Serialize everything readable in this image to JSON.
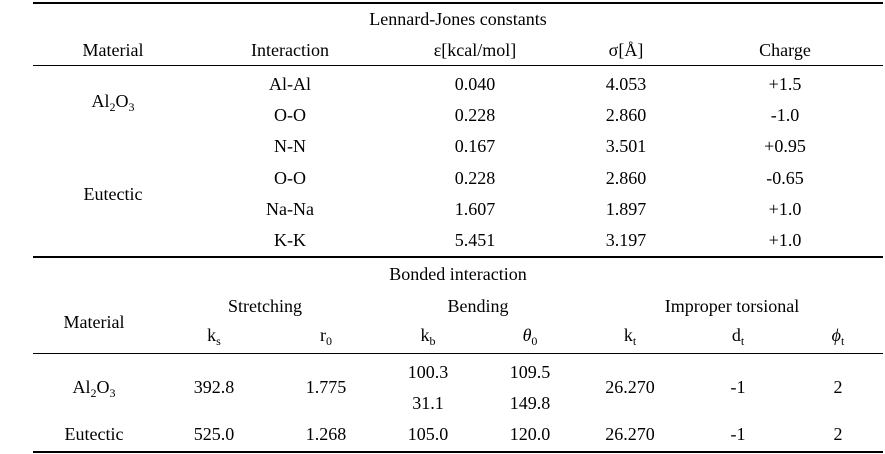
{
  "lj": {
    "title": "Lennard-Jones constants",
    "headers": {
      "material": "Material",
      "interaction": "Interaction",
      "epsilon": "ε[kcal/mol]",
      "sigma": "σ[Å]",
      "charge": "Charge"
    },
    "material_al2o3": {
      "base": "Al",
      "sub1": "2",
      "mid": "O",
      "sub2": "3"
    },
    "material_eutectic": "Eutectic",
    "rows": [
      {
        "interaction": "Al-Al",
        "epsilon": "0.040",
        "sigma": "4.053",
        "charge": "+1.5"
      },
      {
        "interaction": "O-O",
        "epsilon": "0.228",
        "sigma": "2.860",
        "charge": "-1.0"
      },
      {
        "interaction": "N-N",
        "epsilon": "0.167",
        "sigma": "3.501",
        "charge": "+0.95"
      },
      {
        "interaction": "O-O",
        "epsilon": "0.228",
        "sigma": "2.860",
        "charge": "-0.65"
      },
      {
        "interaction": "Na-Na",
        "epsilon": "1.607",
        "sigma": "1.897",
        "charge": "+1.0"
      },
      {
        "interaction": "K-K",
        "epsilon": "5.451",
        "sigma": "3.197",
        "charge": "+1.0"
      }
    ]
  },
  "bonded": {
    "title": "Bonded interaction",
    "headers": {
      "material": "Material",
      "stretching": "Stretching",
      "bending": "Bending",
      "improper": "Improper torsional",
      "ks": {
        "base": "k",
        "sub": "s"
      },
      "r0": {
        "base": "r",
        "sub": "0"
      },
      "kb": {
        "base": "k",
        "sub": "b"
      },
      "theta0": {
        "base": "θ",
        "sub": "0"
      },
      "kt": {
        "base": "k",
        "sub": "t"
      },
      "dt": {
        "base": "d",
        "sub": "t"
      },
      "phit": {
        "base": "ϕ",
        "sub": "t"
      }
    },
    "al2o3": {
      "ks": "392.8",
      "r0": "1.775",
      "kb1": "100.3",
      "theta1": "109.5",
      "kb2": "31.1",
      "theta2": "149.8",
      "kt": "26.270",
      "dt": "-1",
      "phi": "2"
    },
    "eutectic": {
      "label": "Eutectic",
      "ks": "525.0",
      "r0": "1.268",
      "kb": "105.0",
      "theta": "120.0",
      "kt": "26.270",
      "dt": "-1",
      "phi": "2"
    }
  }
}
